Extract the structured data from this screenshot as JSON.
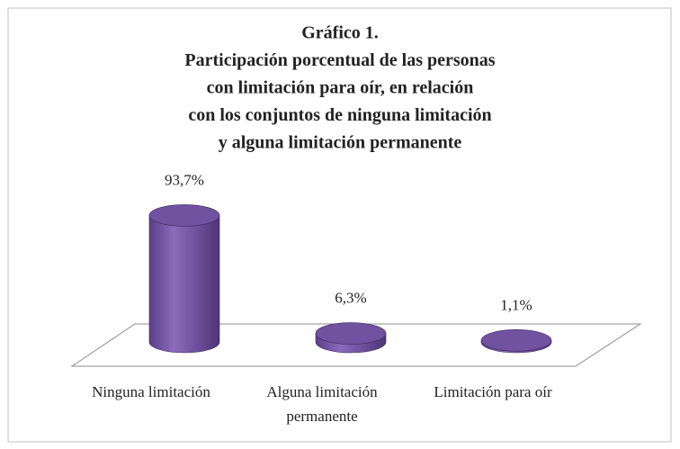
{
  "chart_data": {
    "type": "cylinder-bar",
    "title": [
      "Gráfico 1.",
      "Participación porcentual de las personas",
      "con limitación para oír, en relación",
      "con los conjuntos de ninguna limitación",
      "y alguna limitación permanente"
    ],
    "categories": [
      "Ninguna limitación",
      "Alguna limitación permanente",
      "Limitación para oír"
    ],
    "values": [
      93.7,
      6.3,
      1.1
    ],
    "value_labels": [
      "93,7%",
      "6,3%",
      "1,1%"
    ],
    "color": "#7052a0"
  }
}
